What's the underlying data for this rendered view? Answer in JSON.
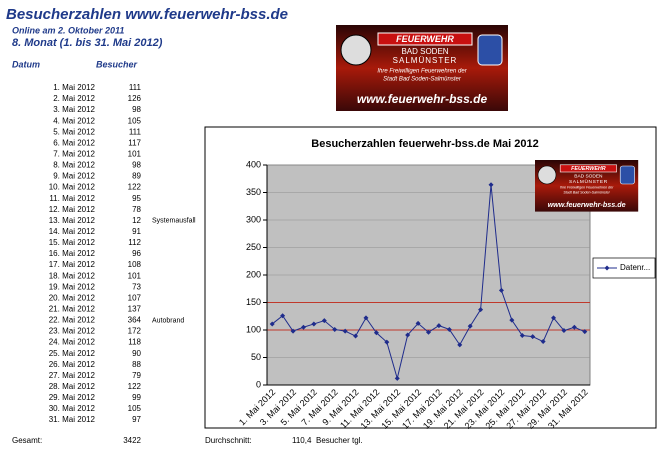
{
  "header": {
    "title": "Besucherzahlen www.feuerwehr-bss.de",
    "online": "Online am 2. Oktober 2011",
    "period": "8. Monat (1. bis 31. Mai 2012)"
  },
  "table": {
    "columns": [
      "Datum",
      "Besucher"
    ],
    "rows": [
      {
        "date": "1. Mai 2012",
        "visitors": 111
      },
      {
        "date": "2. Mai 2012",
        "visitors": 126
      },
      {
        "date": "3. Mai 2012",
        "visitors": 98
      },
      {
        "date": "4. Mai 2012",
        "visitors": 105
      },
      {
        "date": "5. Mai 2012",
        "visitors": 111
      },
      {
        "date": "6. Mai 2012",
        "visitors": 117
      },
      {
        "date": "7. Mai 2012",
        "visitors": 101
      },
      {
        "date": "8. Mai 2012",
        "visitors": 98
      },
      {
        "date": "9. Mai 2012",
        "visitors": 89
      },
      {
        "date": "10. Mai 2012",
        "visitors": 122
      },
      {
        "date": "11. Mai 2012",
        "visitors": 95
      },
      {
        "date": "12. Mai 2012",
        "visitors": 78
      },
      {
        "date": "13. Mai 2012",
        "visitors": 12,
        "note": "Systemausfall"
      },
      {
        "date": "14. Mai 2012",
        "visitors": 91
      },
      {
        "date": "15. Mai 2012",
        "visitors": 112
      },
      {
        "date": "16. Mai 2012",
        "visitors": 96
      },
      {
        "date": "17. Mai 2012",
        "visitors": 108
      },
      {
        "date": "18. Mai 2012",
        "visitors": 101
      },
      {
        "date": "19. Mai 2012",
        "visitors": 73
      },
      {
        "date": "20. Mai 2012",
        "visitors": 107
      },
      {
        "date": "21. Mai 2012",
        "visitors": 137
      },
      {
        "date": "22. Mai 2012",
        "visitors": 364,
        "note": "Autobrand"
      },
      {
        "date": "23. Mai 2012",
        "visitors": 172
      },
      {
        "date": "24. Mai 2012",
        "visitors": 118
      },
      {
        "date": "25. Mai 2012",
        "visitors": 90
      },
      {
        "date": "26. Mai 2012",
        "visitors": 88
      },
      {
        "date": "27. Mai 2012",
        "visitors": 79
      },
      {
        "date": "28. Mai 2012",
        "visitors": 122
      },
      {
        "date": "29. Mai 2012",
        "visitors": 99
      },
      {
        "date": "30. Mai 2012",
        "visitors": 105
      },
      {
        "date": "31. Mai 2012",
        "visitors": 97
      }
    ]
  },
  "footer": {
    "total_label": "Gesamt:",
    "total": 3422,
    "average_label": "Durchschnitt:",
    "average": {
      "value": 110.4,
      "label": "110,4"
    },
    "average_unit": "Besucher tgl."
  },
  "logo": {
    "brand": "FEUERWEHR",
    "town": "BAD SODEN",
    "town2": "SALMÜNSTER",
    "tagline": "Ihre Freiwilligen Feuerwehren der",
    "tagline2": "Stadt Bad Soden-Salmünster",
    "url": "www.feuerwehr-bss.de"
  },
  "chart": {
    "type": "line",
    "title": "Besucherzahlen feuerwehr-bss.de Mai 2012",
    "series_name": "Datenr...",
    "color": "#1f2c8c",
    "categories": [
      "1. Mai 2012",
      null,
      "3. Mai 2012",
      null,
      "5. Mai 2012",
      null,
      "7. Mai 2012",
      null,
      "9. Mai 2012",
      null,
      "11. Mai 2012",
      null,
      "13. Mai 2012",
      null,
      "15. Mai 2012",
      null,
      "17. Mai 2012",
      null,
      "19. Mai 2012",
      null,
      "21. Mai 2012",
      null,
      "23. Mai 2012",
      null,
      "25. Mai 2012",
      null,
      "27. Mai 2012",
      null,
      "29. Mai 2012",
      null,
      "31. Mai 2012"
    ],
    "ylim": [
      0,
      400
    ],
    "yticks": [
      0,
      50,
      100,
      150,
      200,
      250,
      300,
      350,
      400
    ],
    "grid": true,
    "reference_lines": [
      100,
      150
    ],
    "reference_color": "#c0392b",
    "plot_background": "#c0c0c0"
  }
}
